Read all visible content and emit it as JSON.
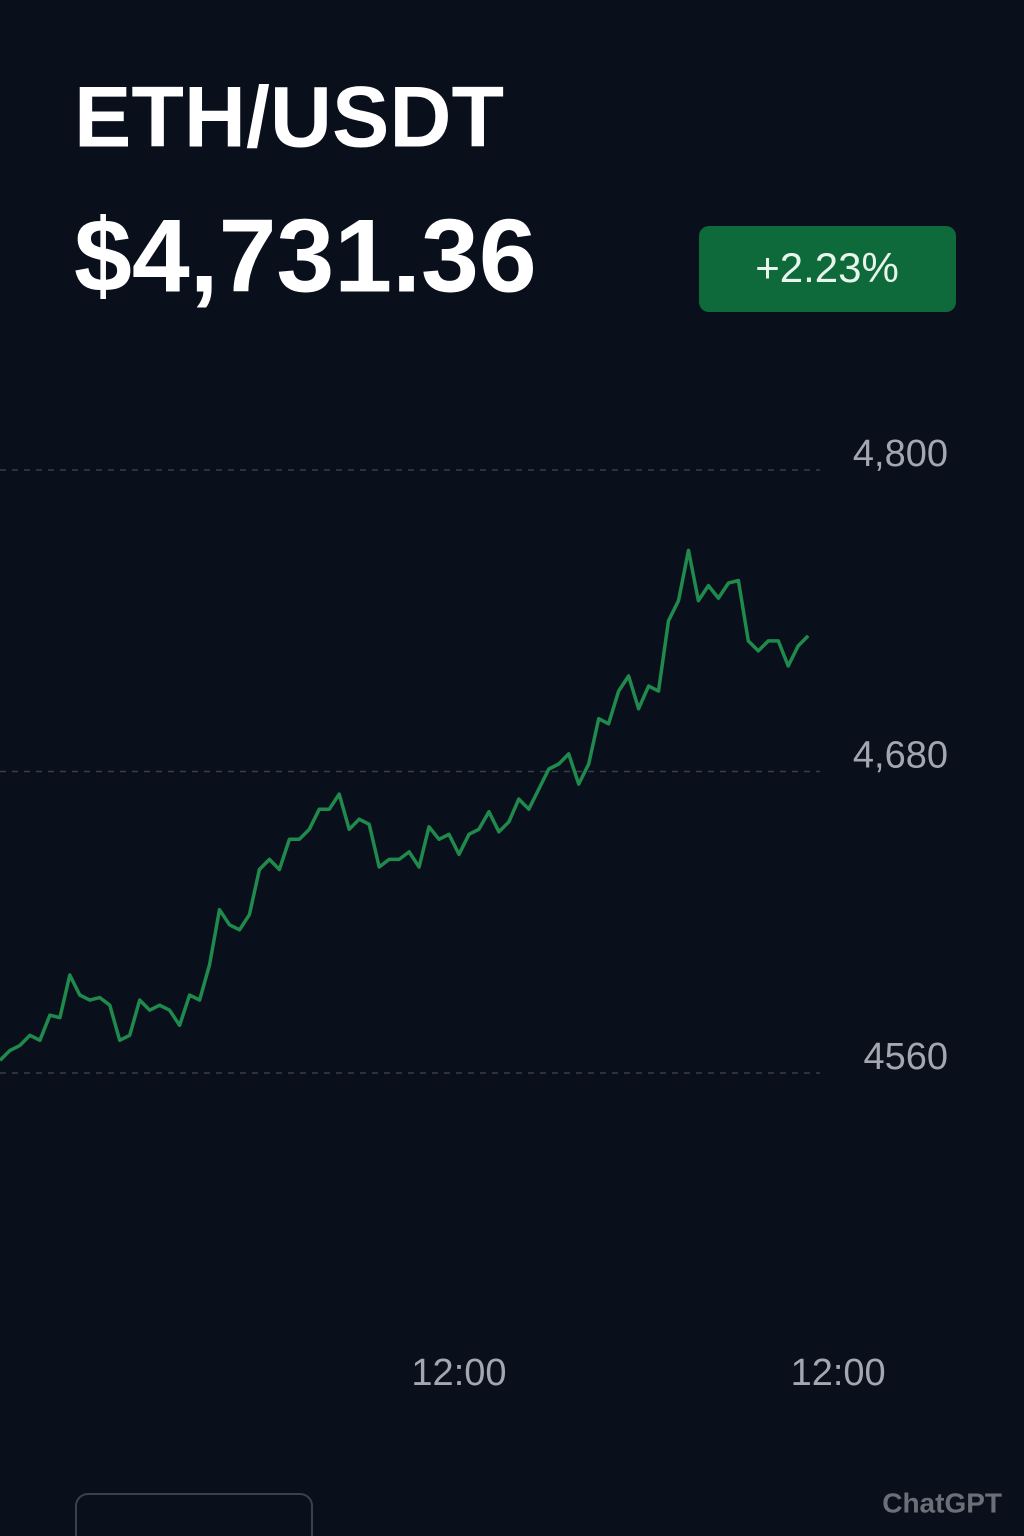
{
  "header": {
    "title": "ETH/USDT",
    "price": "$4,731.36",
    "change": "+2.23%"
  },
  "chart_data": {
    "type": "line",
    "color": "#1f8a4c",
    "grid": true,
    "values": [
      4565,
      4569,
      4571,
      4575,
      4573,
      4583,
      4582,
      4599,
      4591,
      4589,
      4590,
      4587,
      4573,
      4575,
      4589,
      4585,
      4587,
      4585,
      4579,
      4591,
      4589,
      4603,
      4625,
      4619,
      4617,
      4623,
      4641,
      4645,
      4641,
      4653,
      4653,
      4657,
      4665,
      4665,
      4671,
      4657,
      4661,
      4659,
      4642,
      4645,
      4645,
      4648,
      4642,
      4658,
      4653,
      4655,
      4647,
      4655,
      4657,
      4664,
      4656,
      4660,
      4669,
      4665,
      4673,
      4681,
      4683,
      4687,
      4675,
      4683,
      4701,
      4699,
      4712,
      4718,
      4705,
      4714,
      4712,
      4740,
      4748,
      4768,
      4748,
      4754,
      4749,
      4755,
      4756,
      4732,
      4728,
      4732,
      4732,
      4722,
      4730,
      4734
    ],
    "ylim": [
      4560,
      4800
    ],
    "yticks": [
      4560,
      {
        "value": 4680,
        "label": "4,680"
      },
      {
        "value": 4800,
        "label": "4,800"
      }
    ],
    "xlim": [
      0,
      90
    ],
    "xticks": [
      {
        "value": 46,
        "label": "12:00"
      },
      {
        "value": 84,
        "label": "12:00"
      }
    ]
  },
  "watermark": "ChatGPT"
}
